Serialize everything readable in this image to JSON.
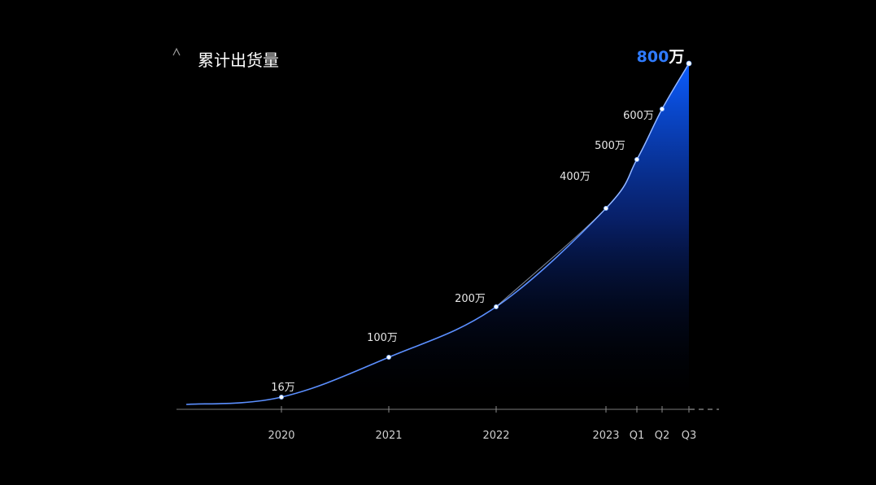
{
  "colors": {
    "background": "#000000",
    "line": "#5b8fff",
    "line_highlight": "#cfe0ff",
    "area_top": "#0a5cff",
    "area_bottom": "#000000",
    "accent_label": "#2f7bff",
    "axis": "#8a8a8a"
  },
  "chart_data": {
    "type": "area",
    "title": "",
    "ylabel": "累计出货量",
    "xlabel": "",
    "grid": false,
    "legend": "none",
    "x": [
      "2020",
      "2021",
      "2022",
      "2023",
      "Q1",
      "Q2",
      "Q3"
    ],
    "series": [
      {
        "name": "",
        "values": [
          16,
          100,
          200,
          400,
          500,
          600,
          800
        ],
        "labels": [
          "16万",
          "100万",
          "200万",
          "400万",
          "500万",
          "600万",
          "800万"
        ]
      }
    ],
    "unit": "万",
    "ylim": [
      0,
      800
    ]
  }
}
